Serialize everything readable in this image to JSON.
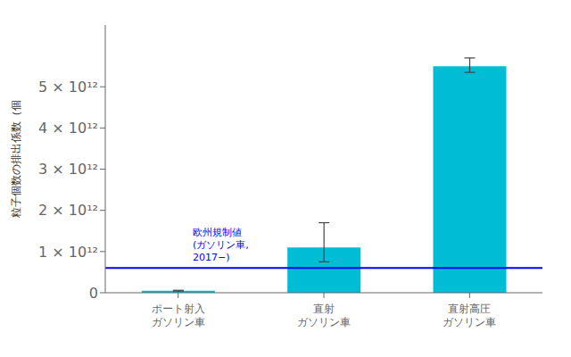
{
  "chart_data": {
    "type": "bar",
    "categories": [
      "ポート射入\nガソリン車",
      "直射\nガソリン車",
      "直射高圧\nガソリン車"
    ],
    "values": [
      50000000000.0,
      1100000000000.0,
      5500000000000.0
    ],
    "errors_low": [
      10000000000.0,
      350000000000.0,
      150000000000.0
    ],
    "errors_high": [
      10000000000.0,
      600000000000.0,
      200000000000.0
    ],
    "color": "#00bcd4",
    "ylabel": "粒子個数の排出係数（個",
    "ylim": [
      0,
      6500000000000.0
    ],
    "yticks": [
      0,
      {
        "value": 1000000000000.0,
        "label": "1 × 10¹²"
      },
      {
        "value": 2000000000000.0,
        "label": "2 × 10¹²"
      },
      {
        "value": 3000000000000.0,
        "label": "3 × 10¹²"
      },
      {
        "value": 4000000000000.0,
        "label": "4 × 10¹²"
      },
      {
        "value": 5000000000000.0,
        "label": "5 × 10¹²"
      }
    ],
    "reference_line": {
      "y": 600000000000.0,
      "label": "欧州規制値\n(ガソリン車,\n2017−)",
      "color": "blue"
    },
    "grid": false
  }
}
